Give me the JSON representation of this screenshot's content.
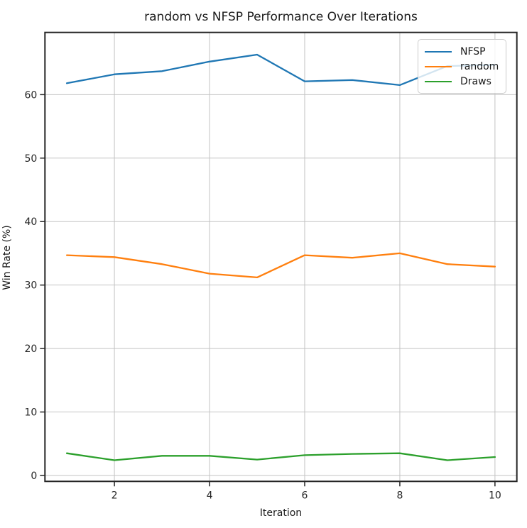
{
  "chart_data": {
    "type": "line",
    "title": "random vs NFSP Performance Over Iterations",
    "xlabel": "Iteration",
    "ylabel": "Win Rate (%)",
    "x": [
      1,
      2,
      3,
      4,
      5,
      6,
      7,
      8,
      9,
      10
    ],
    "series": [
      {
        "name": "NFSP",
        "color": "#1f77b4",
        "values": [
          61.8,
          63.2,
          63.7,
          65.2,
          66.3,
          62.1,
          62.3,
          61.5,
          64.5,
          64.7
        ]
      },
      {
        "name": "random",
        "color": "#ff7f0e",
        "values": [
          34.7,
          34.4,
          33.3,
          31.8,
          31.2,
          34.7,
          34.3,
          35.0,
          33.3,
          32.9
        ]
      },
      {
        "name": "Draws",
        "color": "#2ca02c",
        "values": [
          3.5,
          2.4,
          3.1,
          3.1,
          2.5,
          3.2,
          3.4,
          3.5,
          2.4,
          2.9
        ]
      }
    ],
    "x_ticks": [
      2,
      4,
      6,
      8,
      10
    ],
    "y_ticks": [
      0,
      10,
      20,
      30,
      40,
      50,
      60
    ],
    "xlim": [
      0.54,
      10.46
    ],
    "ylim": [
      -0.93,
      69.8
    ],
    "grid": true,
    "legend_position": "upper right",
    "legend_labels": [
      "NFSP",
      "random",
      "Draws"
    ]
  },
  "colors": {
    "grid": "#c3c3c3",
    "spine": "#262626",
    "tick": "#262626",
    "text": "#1a1a1a",
    "legend_border": "#cccccc"
  }
}
